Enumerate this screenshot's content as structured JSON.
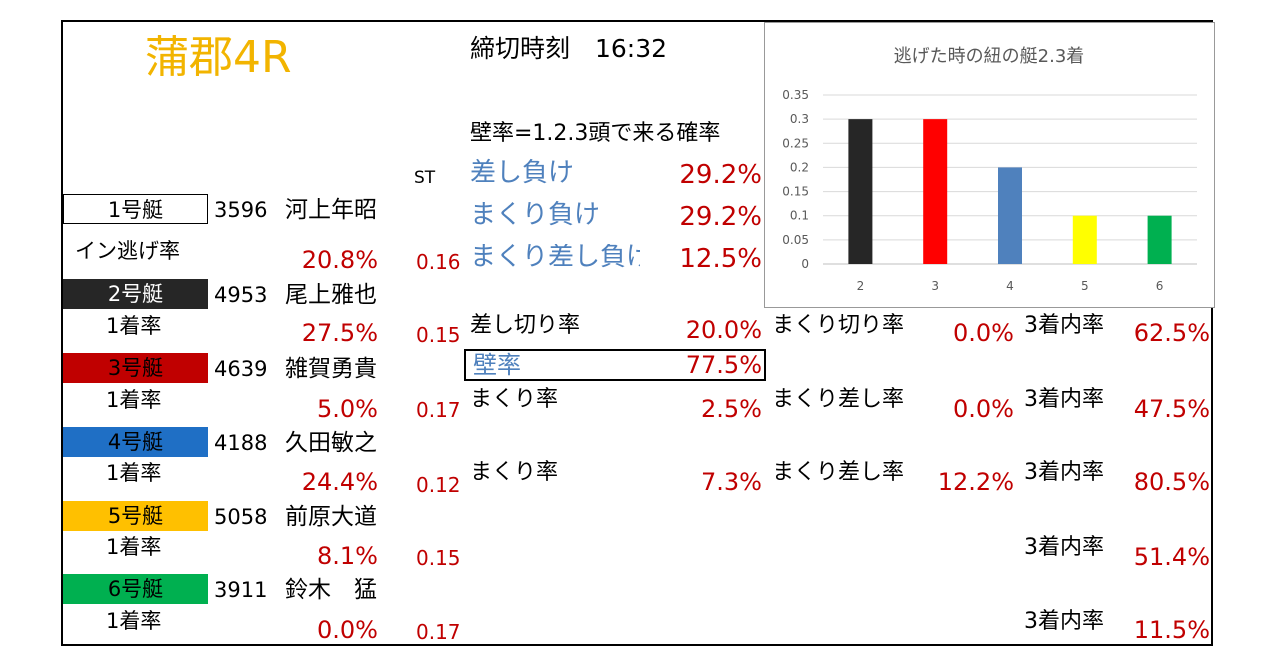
{
  "venue": "蒲郡4R",
  "deadline": "締切時刻　16:32",
  "st_header": "ST",
  "boats": [
    {
      "label": "1号艇",
      "reg": "3596",
      "name": "河上年昭",
      "bg": "#ffffff",
      "fg": "#000000",
      "stat_label": "イン逃げ率",
      "stat": "20.8%",
      "st": "0.16"
    },
    {
      "label": "2号艇",
      "reg": "4953",
      "name": "尾上雅也",
      "bg": "#262626",
      "fg": "#ffffff",
      "stat_label": "1着率",
      "stat": "27.5%",
      "st": "0.15"
    },
    {
      "label": "3号艇",
      "reg": "4639",
      "name": "雑賀勇貴",
      "bg": "#c00000",
      "fg": "#000000",
      "stat_label": "1着率",
      "stat": "5.0%",
      "st": "0.17"
    },
    {
      "label": "4号艇",
      "reg": "4188",
      "name": "久田敏之",
      "bg": "#1f6fc5",
      "fg": "#000000",
      "stat_label": "1着率",
      "stat": "24.4%",
      "st": "0.12"
    },
    {
      "label": "5号艇",
      "reg": "5058",
      "name": "前原大道",
      "bg": "#ffc000",
      "fg": "#000000",
      "stat_label": "1着率",
      "stat": "8.1%",
      "st": "0.15"
    },
    {
      "label": "6号艇",
      "reg": "3911",
      "name": "鈴木　猛",
      "bg": "#00b050",
      "fg": "#000000",
      "stat_label": "1着率",
      "stat": "0.0%",
      "st": "0.17"
    }
  ],
  "wall": {
    "header": "壁率=1.2.3頭で来る確率",
    "rows": [
      {
        "label": "差し負け",
        "value": "29.2%"
      },
      {
        "label": "まくり負け",
        "value": "29.2%"
      },
      {
        "label": "まくり差し負け",
        "value": "12.5%"
      }
    ]
  },
  "b2": {
    "sashikiri_label": "差し切り率",
    "sashikiri": "20.0%",
    "makurikiri_label": "まくり切り率",
    "makurikiri": "0.0%",
    "top3_label": "3着内率",
    "top3": "62.5%"
  },
  "kabe": {
    "label": "壁率",
    "value": "77.5%"
  },
  "b3": {
    "makuri_label": "まくり率",
    "makuri": "2.5%",
    "makurisashi_label": "まくり差し率",
    "makurisashi": "0.0%",
    "top3_label": "3着内率",
    "top3": "47.5%"
  },
  "b4": {
    "makuri_label": "まくり率",
    "makuri": "7.3%",
    "makurisashi_label": "まくり差し率",
    "makurisashi": "12.2%",
    "top3_label": "3着内率",
    "top3": "80.5%"
  },
  "b5": {
    "top3_label": "3着内率",
    "top3": "51.4%"
  },
  "b6": {
    "top3_label": "3着内率",
    "top3": "11.5%"
  },
  "chart_data": {
    "type": "bar",
    "title": "逃げた時の紐の艇2.3着",
    "categories": [
      "2",
      "3",
      "4",
      "5",
      "6"
    ],
    "values": [
      0.3,
      0.3,
      0.2,
      0.1,
      0.1
    ],
    "colors": [
      "#262626",
      "#ff0000",
      "#4f81bd",
      "#ffff00",
      "#00b050"
    ],
    "ylim": [
      0,
      0.35
    ],
    "yticks": [
      "0",
      "0.05",
      "0.1",
      "0.15",
      "0.2",
      "0.25",
      "0.3",
      "0.35"
    ],
    "grid": true,
    "xlabel": "",
    "ylabel": ""
  }
}
